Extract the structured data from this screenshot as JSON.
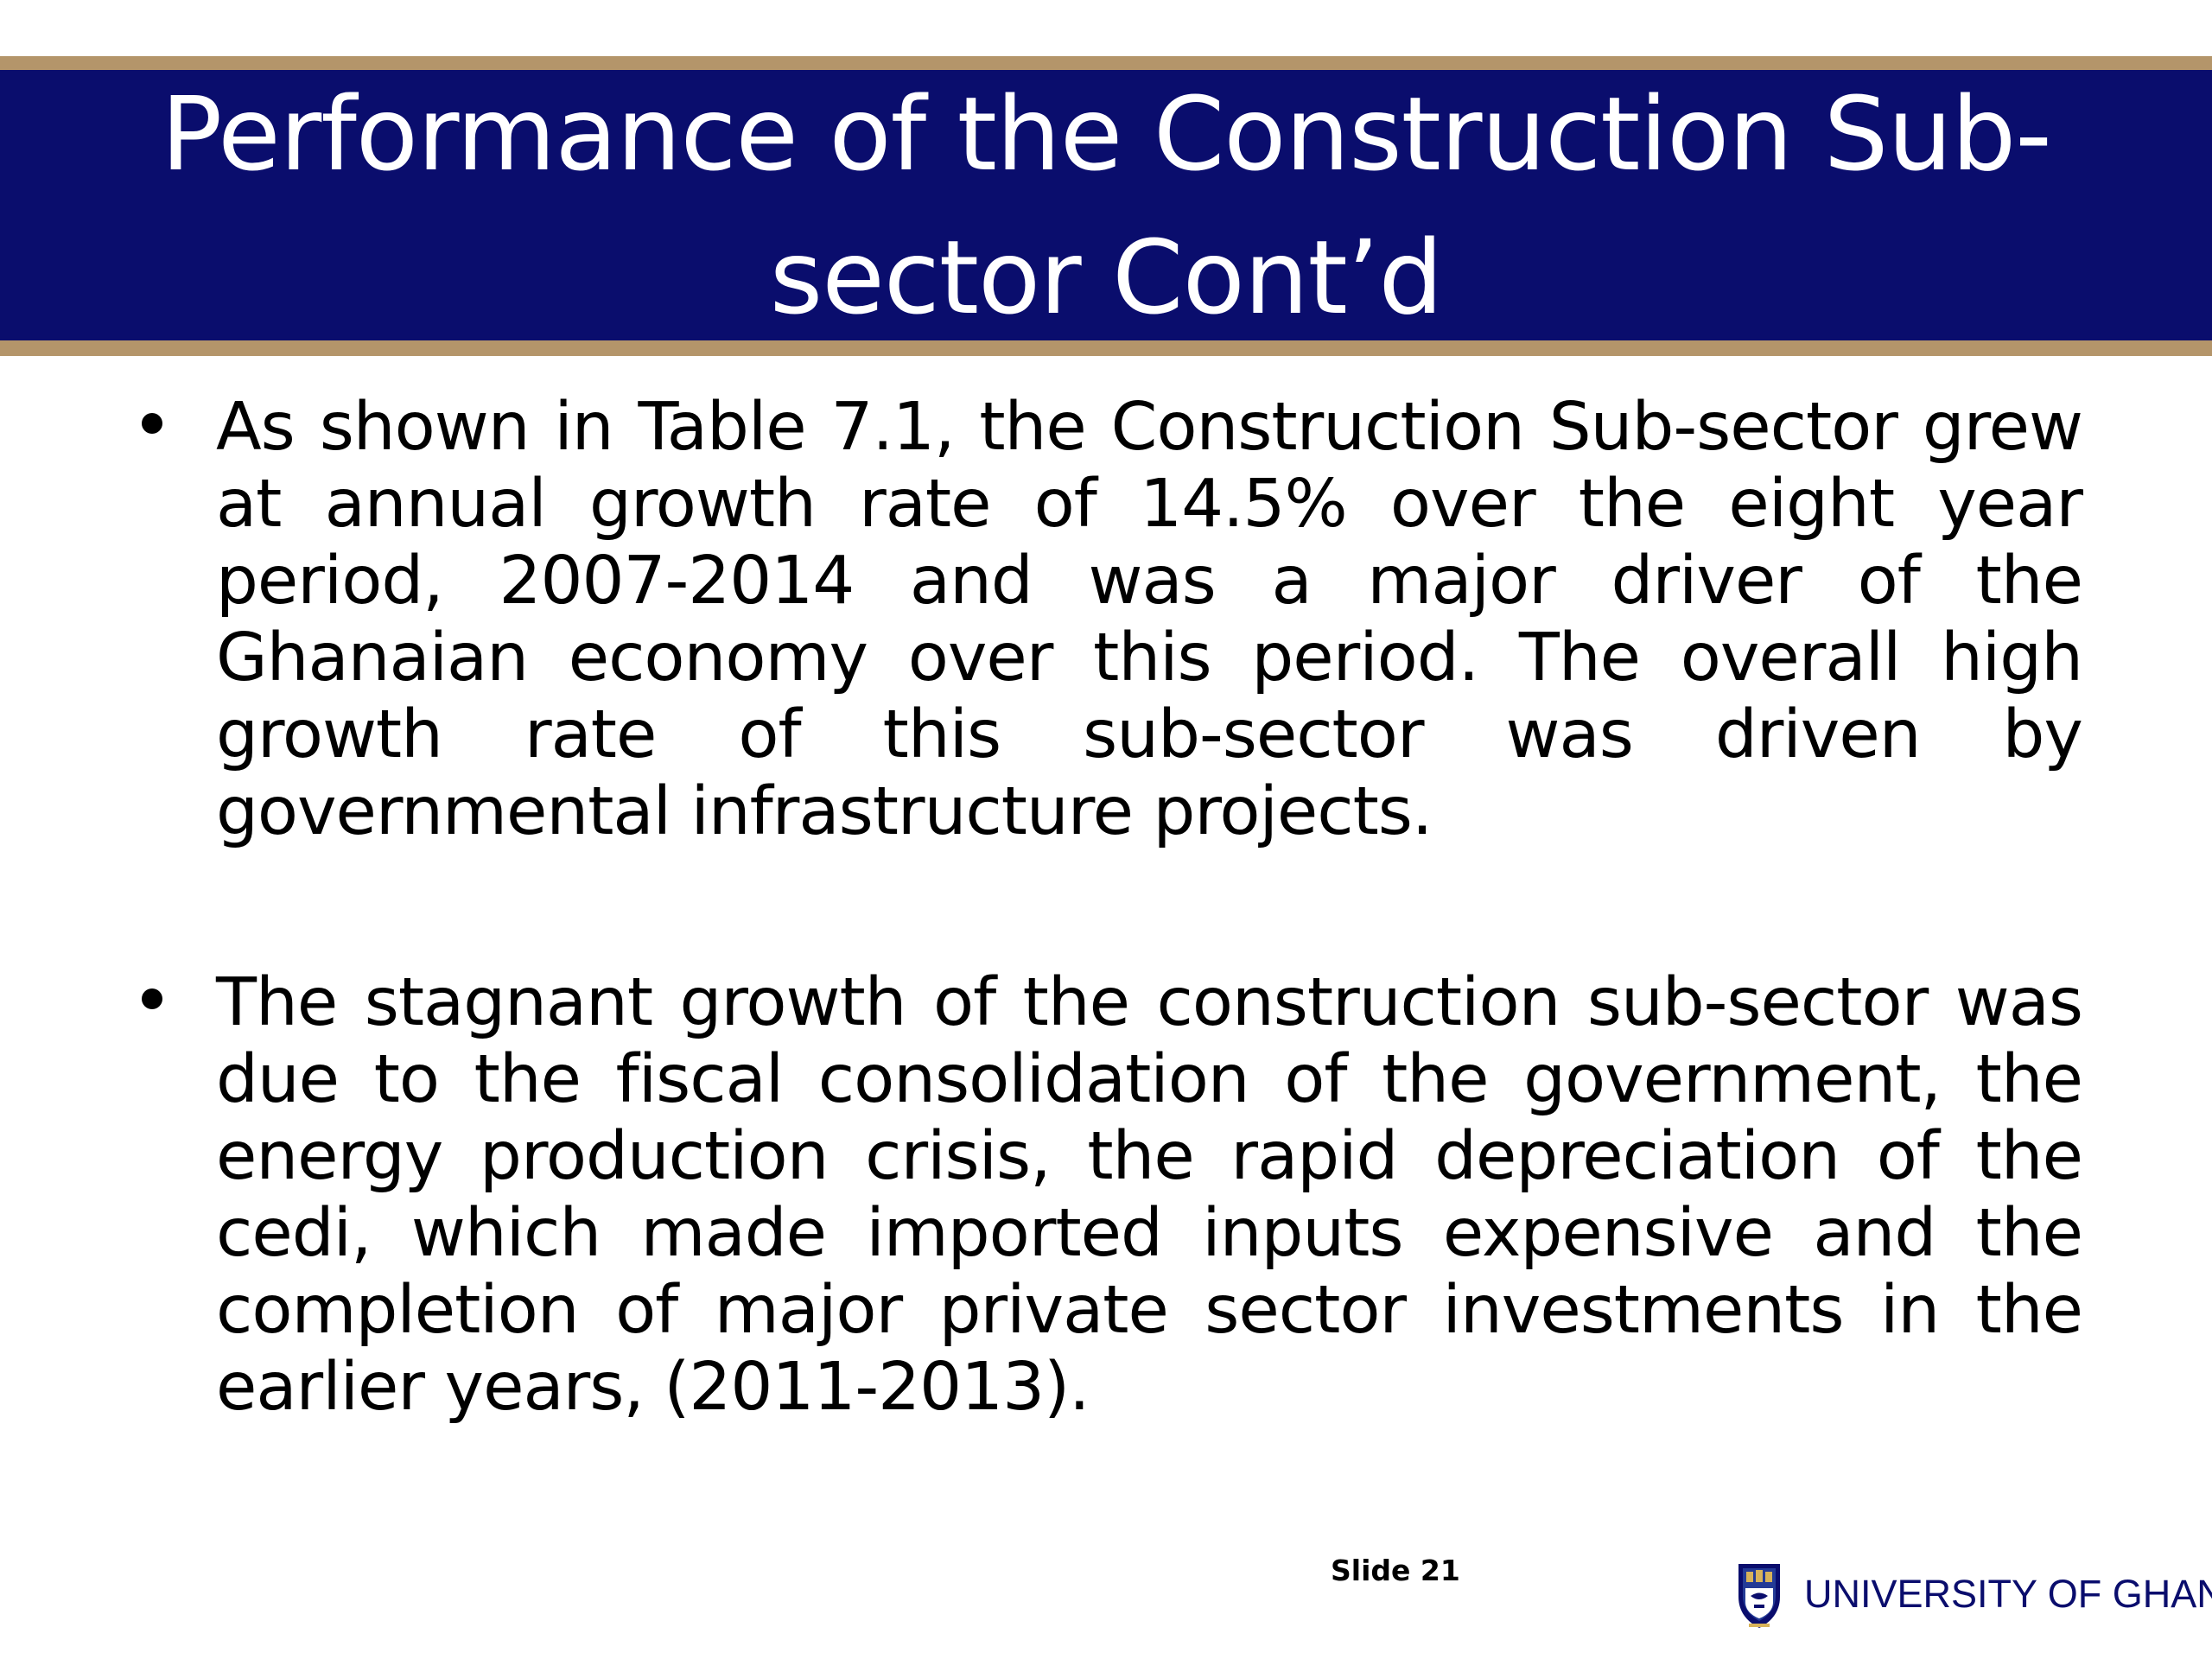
{
  "slide": {
    "title": "Performance of the Construction Sub-sector Cont’d",
    "bullets": [
      {
        "text": "As shown in Table 7.1, the Construction Sub-sector grew at annual growth rate of 14.5% over the eight year period, 2007-2014 and was a major driver of the Ghanaian economy over this period. The overall high growth rate of this sub-sector was driven by governmental infrastructure projects."
      },
      {
        "text": "The stagnant growth of the construction sub-sector was due to the fiscal consolidation of the government, the energy production crisis, the rapid depreciation of the cedi, which made imported inputs expensive and the completion of major private sector investments in the earlier years, (2011-2013)."
      }
    ],
    "slide_number": "Slide 21"
  },
  "footer": {
    "university_name": "UNIVERSITY OF GHANA",
    "crest_icon": "university-crest-icon"
  },
  "colors": {
    "title_background": "#0a0d6d",
    "title_border": "#b4956a",
    "title_text": "#ffffff",
    "body_text": "#000000",
    "university_name": "#0a0d6d"
  }
}
